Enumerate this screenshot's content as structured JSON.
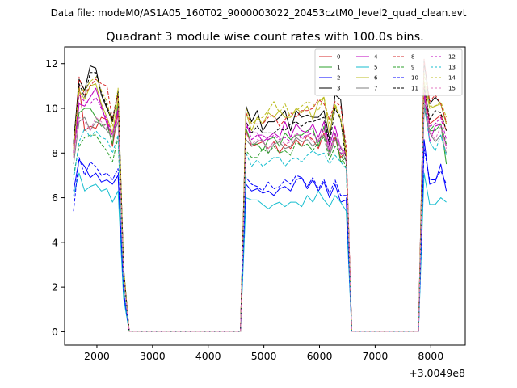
{
  "chart_data": {
    "type": "line",
    "suptitle": "Data file: modeM0/AS1A05_160T02_9000003022_20453cztM0_level2_quad_clean.evt",
    "title": "Quadrant 3 module wise count rates with 100.0s bins.",
    "xlabel": "",
    "ylabel": "",
    "x_offset_label": "+3.0049e8",
    "xlim": [
      1420,
      8620
    ],
    "ylim": [
      -0.6,
      12.75
    ],
    "xticks": [
      2000,
      3000,
      4000,
      5000,
      6000,
      7000,
      8000
    ],
    "yticks": [
      0,
      2,
      4,
      6,
      8,
      10,
      12
    ],
    "grid": false,
    "legend_position": "top-right",
    "segments": [
      {
        "start": 1580,
        "end": 2380,
        "step": 100,
        "tail": [
          2480,
          2580
        ]
      },
      {
        "start": 4680,
        "end": 6480,
        "step": 100,
        "lead": [
          4580
        ],
        "tail": [
          6580
        ]
      },
      {
        "start": 7880,
        "end": 8280,
        "step": 100,
        "lead": [
          7780
        ]
      }
    ],
    "gaps": [
      [
        2580,
        4580
      ],
      [
        6580,
        7780
      ]
    ],
    "series": [
      {
        "name": "0",
        "color": "#d62728",
        "dash": false,
        "seg1": [
          8.0,
          11.0,
          9.0,
          9.2,
          9.1,
          9.6,
          9.5,
          8.3,
          9.8
        ],
        "seg2": [
          9.0,
          8.3,
          8.4,
          8.5,
          8.2,
          8.5,
          8.0,
          8.4,
          8.2,
          8.6,
          8.3,
          8.8,
          8.6,
          8.2,
          8.9,
          8.1,
          8.7,
          7.8,
          8.1
        ],
        "seg3": [
          11.0,
          9.3,
          9.5,
          9.7,
          9.0
        ]
      },
      {
        "name": "1",
        "color": "#2ca02c",
        "dash": false,
        "seg1": [
          8.1,
          9.8,
          10.0,
          10.0,
          9.6,
          9.2,
          9.3,
          8.4,
          10.2
        ],
        "seg2": [
          9.1,
          8.4,
          8.4,
          8.1,
          8.6,
          8.7,
          8.3,
          8.9,
          8.6,
          8.8,
          8.8,
          9.0,
          9.1,
          8.3,
          9.2,
          8.0,
          8.9,
          7.6,
          7.8
        ],
        "seg3": [
          10.2,
          9.0,
          9.0,
          9.3,
          7.5
        ]
      },
      {
        "name": "2",
        "color": "#0000ff",
        "dash": false,
        "seg1": [
          6.3,
          7.7,
          7.4,
          6.9,
          7.1,
          6.7,
          6.8,
          6.6,
          7.0
        ],
        "seg2": [
          6.6,
          6.3,
          6.4,
          6.2,
          6.3,
          6.1,
          6.4,
          6.5,
          6.3,
          6.8,
          6.9,
          6.4,
          6.8,
          6.3,
          6.7,
          6.0,
          6.6,
          5.8,
          5.9
        ],
        "seg3": [
          8.6,
          6.6,
          6.7,
          7.5,
          6.3
        ]
      },
      {
        "name": "3",
        "color": "#000000",
        "dash": false,
        "seg1": [
          8.4,
          11.3,
          10.8,
          11.9,
          11.8,
          10.6,
          10.0,
          9.4,
          10.7
        ],
        "seg2": [
          10.1,
          9.4,
          9.9,
          9.0,
          9.4,
          9.4,
          9.6,
          9.9,
          9.0,
          9.9,
          9.6,
          9.7,
          9.6,
          9.6,
          9.9,
          8.6,
          10.6,
          10.4,
          7.8
        ],
        "seg3": [
          12.1,
          10.2,
          10.5,
          10.2,
          9.3
        ]
      },
      {
        "name": "4",
        "color": "#bf00bf",
        "dash": false,
        "seg1": [
          7.8,
          10.2,
          10.1,
          10.5,
          10.9,
          10.1,
          9.3,
          8.8,
          9.9
        ],
        "seg2": [
          9.2,
          8.9,
          8.9,
          8.5,
          8.7,
          8.9,
          8.7,
          9.4,
          8.7,
          9.3,
          9.0,
          8.9,
          9.3,
          8.7,
          9.4,
          8.3,
          9.2,
          8.2,
          8.0
        ],
        "seg3": [
          10.8,
          8.5,
          9.2,
          9.3,
          8.3
        ]
      },
      {
        "name": "5",
        "color": "#17becf",
        "dash": false,
        "seg1": [
          6.1,
          7.1,
          6.3,
          6.5,
          6.6,
          6.3,
          6.4,
          5.8,
          6.3
        ],
        "seg2": [
          6.0,
          5.9,
          5.9,
          5.7,
          5.5,
          5.7,
          5.8,
          5.6,
          5.8,
          5.8,
          5.6,
          6.1,
          5.8,
          6.3,
          5.9,
          5.6,
          6.1,
          5.8,
          5.4
        ],
        "seg3": [
          7.1,
          5.7,
          5.7,
          6.0,
          5.8
        ]
      },
      {
        "name": "6",
        "color": "#bcbd22",
        "dash": false,
        "seg1": [
          7.9,
          10.8,
          10.4,
          11.0,
          11.1,
          10.2,
          9.6,
          8.9,
          10.4
        ],
        "seg2": [
          9.8,
          9.0,
          9.6,
          9.3,
          9.8,
          9.6,
          9.9,
          9.6,
          9.6,
          10.0,
          9.8,
          10.1,
          9.5,
          10.3,
          10.5,
          8.9,
          10.1,
          9.5,
          7.8
        ],
        "seg3": [
          11.2,
          10.0,
          10.1,
          10.2,
          9.3
        ]
      },
      {
        "name": "7",
        "color": "#7f7f7f",
        "dash": false,
        "seg1": [
          7.5,
          9.4,
          9.6,
          9.0,
          9.4,
          9.3,
          9.0,
          8.7,
          9.4
        ],
        "seg2": [
          8.6,
          8.3,
          8.5,
          8.6,
          8.0,
          8.4,
          8.5,
          8.2,
          8.3,
          8.7,
          8.5,
          8.6,
          8.3,
          8.6,
          8.8,
          7.9,
          8.6,
          8.3,
          7.6
        ],
        "seg3": [
          10.0,
          8.9,
          8.5,
          8.8,
          8.0
        ]
      },
      {
        "name": "8",
        "color": "#d62728",
        "dash": true,
        "seg1": [
          8.3,
          11.4,
          10.6,
          11.0,
          11.3,
          11.1,
          11.0,
          9.5,
          10.6
        ],
        "seg2": [
          9.8,
          9.3,
          9.3,
          9.3,
          9.6,
          9.7,
          9.2,
          9.5,
          9.8,
          9.6,
          9.9,
          9.9,
          10.0,
          10.4,
          10.2,
          9.5,
          10.3,
          10.1,
          8.3
        ],
        "seg3": [
          12.2,
          10.3,
          10.6,
          10.2,
          9.4
        ]
      },
      {
        "name": "9",
        "color": "#2ca02c",
        "dash": true,
        "seg1": [
          7.0,
          8.3,
          8.7,
          8.8,
          8.8,
          8.4,
          8.1,
          7.6,
          8.7
        ],
        "seg2": [
          8.1,
          7.8,
          7.8,
          8.2,
          8.0,
          8.3,
          8.0,
          8.1,
          7.9,
          8.5,
          8.3,
          8.4,
          8.1,
          8.5,
          8.7,
          7.7,
          8.3,
          8.0,
          7.3
        ],
        "seg3": [
          10.4,
          9.0,
          9.3,
          9.3,
          8.4
        ]
      },
      {
        "name": "10",
        "color": "#0000ff",
        "dash": true,
        "seg1": [
          5.4,
          7.8,
          7.0,
          7.6,
          7.4,
          7.0,
          7.1,
          6.8,
          7.3
        ],
        "seg2": [
          6.9,
          6.6,
          6.5,
          6.3,
          6.7,
          6.4,
          6.5,
          6.8,
          6.6,
          7.0,
          6.9,
          6.5,
          6.9,
          6.4,
          6.8,
          6.2,
          6.8,
          6.1,
          6.1
        ],
        "seg3": [
          8.2,
          6.8,
          6.8,
          7.2,
          6.6
        ]
      },
      {
        "name": "11",
        "color": "#000000",
        "dash": true,
        "seg1": [
          8.5,
          11.1,
          10.5,
          11.6,
          11.6,
          10.7,
          10.1,
          9.5,
          10.8
        ],
        "seg2": [
          9.4,
          8.9,
          9.2,
          8.9,
          8.9,
          8.9,
          9.1,
          9.0,
          9.3,
          9.4,
          9.2,
          9.4,
          9.4,
          9.5,
          9.6,
          8.4,
          10.0,
          9.5,
          7.6
        ],
        "seg3": [
          11.0,
          9.5,
          9.9,
          9.8,
          9.0
        ]
      },
      {
        "name": "12",
        "color": "#bf00bf",
        "dash": true,
        "seg1": [
          8.0,
          10.6,
          10.3,
          10.2,
          10.5,
          10.0,
          9.5,
          8.8,
          10.0
        ],
        "seg2": [
          9.4,
          8.6,
          8.8,
          8.8,
          8.6,
          8.8,
          8.6,
          8.7,
          8.5,
          8.9,
          8.7,
          8.8,
          8.9,
          8.5,
          9.1,
          8.1,
          8.9,
          8.0,
          8.0
        ],
        "seg3": [
          10.6,
          9.2,
          9.3,
          9.6,
          8.6
        ]
      },
      {
        "name": "13",
        "color": "#17becf",
        "dash": true,
        "seg1": [
          6.8,
          8.5,
          9.1,
          8.7,
          9.0,
          8.7,
          8.6,
          8.0,
          8.8
        ],
        "seg2": [
          8.0,
          7.4,
          7.7,
          7.4,
          7.6,
          7.8,
          7.8,
          7.4,
          7.7,
          7.8,
          7.6,
          7.9,
          8.1,
          7.9,
          8.0,
          7.5,
          7.9,
          7.6,
          7.3
        ],
        "seg3": [
          10.2,
          8.5,
          8.1,
          8.8,
          7.9
        ]
      },
      {
        "name": "14",
        "color": "#bcbd22",
        "dash": true,
        "seg1": [
          8.2,
          10.9,
          10.8,
          11.2,
          11.4,
          10.8,
          10.3,
          9.2,
          10.9
        ],
        "seg2": [
          10.0,
          9.3,
          9.5,
          9.6,
          9.9,
          10.3,
          9.8,
          10.2,
          9.6,
          9.9,
          10.1,
          10.3,
          10.2,
          9.9,
          10.5,
          9.3,
          10.2,
          9.6,
          8.0
        ],
        "seg3": [
          11.6,
          10.1,
          10.1,
          10.3,
          9.6
        ]
      },
      {
        "name": "15",
        "color": "#e377c2",
        "dash": true,
        "seg1": [
          7.8,
          9.6,
          9.4,
          9.0,
          9.6,
          9.4,
          9.1,
          8.8,
          9.6
        ],
        "seg2": [
          8.9,
          8.4,
          8.6,
          8.5,
          8.2,
          8.5,
          8.6,
          8.4,
          8.5,
          8.9,
          8.6,
          8.8,
          8.5,
          8.6,
          9.0,
          8.0,
          8.8,
          8.3,
          7.8
        ],
        "seg3": [
          10.3,
          9.0,
          8.6,
          9.2,
          8.2
        ]
      }
    ]
  }
}
